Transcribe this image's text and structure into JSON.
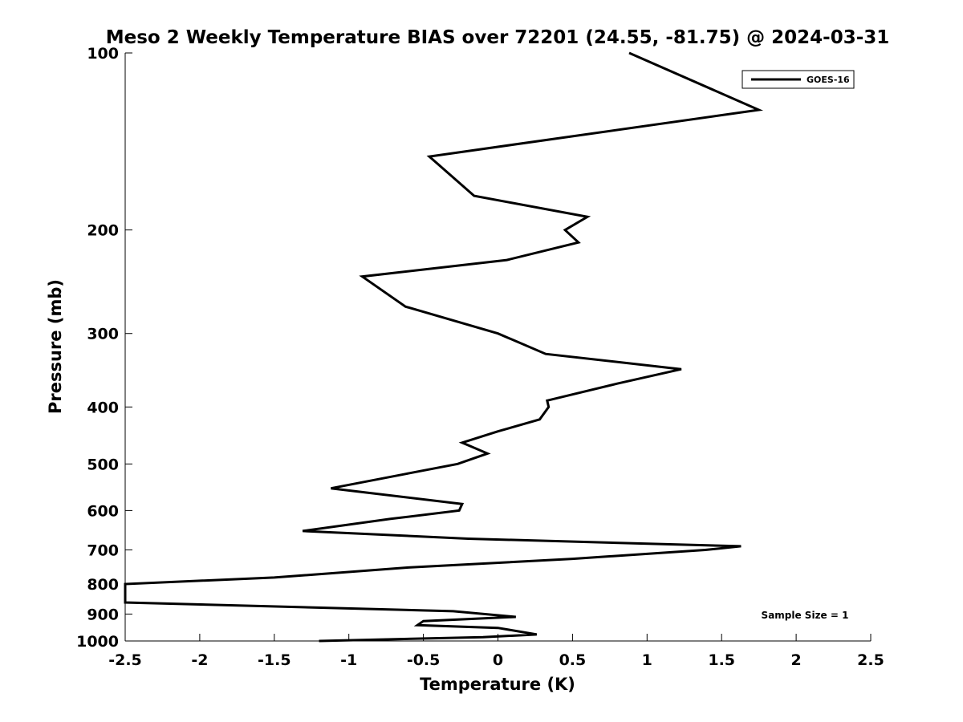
{
  "chart_data": {
    "type": "line",
    "title": "Meso 2 Weekly Temperature BIAS over 72201 (24.55, -81.75) @ 2024-03-31",
    "xlabel": "Temperature (K)",
    "ylabel": "Pressure (mb)",
    "xlim": [
      -2.5,
      2.5
    ],
    "ylim": [
      100,
      1000
    ],
    "y_scale": "log",
    "y_reversed": true,
    "x_ticks": [
      -2.5,
      -2,
      -1.5,
      -1,
      -0.5,
      0,
      0.5,
      1,
      1.5,
      2,
      2.5
    ],
    "x_tick_labels": [
      "-2.5",
      "-2",
      "-1.5",
      "-1",
      "-0.5",
      "0",
      "0.5",
      "1",
      "1.5",
      "2",
      "2.5"
    ],
    "y_ticks": [
      100,
      200,
      300,
      400,
      500,
      600,
      700,
      800,
      900,
      1000
    ],
    "y_tick_labels": [
      "100",
      "200",
      "300",
      "400",
      "500",
      "600",
      "700",
      "800",
      "900",
      "1000"
    ],
    "grid": false,
    "legend_position": "top-right",
    "series": [
      {
        "name": "GOES-16",
        "color": "#000000",
        "x": [
          0.88,
          1.75,
          -0.46,
          -0.16,
          0.6,
          0.45,
          0.54,
          0.06,
          -0.91,
          -0.62,
          0.0,
          0.32,
          1.23,
          0.8,
          0.33,
          0.34,
          0.28,
          0.0,
          -0.24,
          -0.07,
          -0.27,
          -0.62,
          -1.12,
          -0.24,
          -0.26,
          -0.72,
          -1.31,
          -0.2,
          1.63,
          1.39,
          0.5,
          -0.6,
          -1.5,
          -2.5,
          -2.5,
          -2.5,
          -0.3,
          0.12,
          -0.5,
          -0.54,
          0.0,
          0.26,
          -0.1,
          -1.2
        ],
        "y": [
          100,
          125,
          150,
          175,
          190,
          200,
          210,
          225,
          240,
          270,
          300,
          325,
          345,
          365,
          390,
          400,
          420,
          440,
          460,
          480,
          500,
          520,
          550,
          585,
          600,
          620,
          650,
          670,
          690,
          700,
          725,
          750,
          780,
          800,
          810,
          860,
          890,
          910,
          925,
          940,
          950,
          975,
          985,
          1000
        ]
      }
    ],
    "annotations": [
      "Sample Size = 1"
    ]
  }
}
